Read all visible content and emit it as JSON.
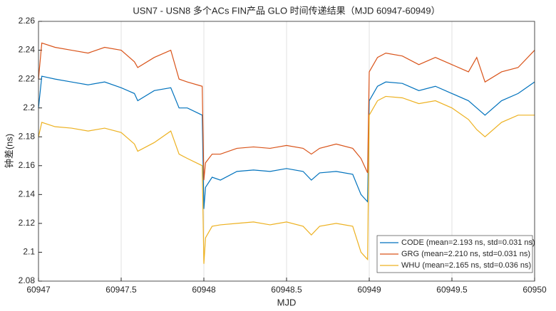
{
  "chart_data": {
    "type": "line",
    "title": "USN7 - USN8 多个ACs FIN产品 GLO 时间传递结果（MJD 60947-60949）",
    "x_label": "MJD",
    "y_label": "钟差(ns)",
    "x": [
      60947,
      60947.02,
      60947.1,
      60947.2,
      60947.3,
      60947.4,
      60947.5,
      60947.58,
      60947.6,
      60947.7,
      60947.8,
      60947.85,
      60947.9,
      60947.99,
      60948.0,
      60948.01,
      60948.05,
      60948.1,
      60948.2,
      60948.3,
      60948.4,
      60948.5,
      60948.6,
      60948.65,
      60948.7,
      60948.8,
      60948.9,
      60948.95,
      60948.99,
      60949.0,
      60949.05,
      60949.1,
      60949.2,
      60949.3,
      60949.4,
      60949.5,
      60949.6,
      60949.65,
      60949.7,
      60949.8,
      60949.9,
      60950
    ],
    "series": [
      {
        "name": "CODE (mean=2.193 ns, std=0.031 ns)",
        "color": "#0072BD",
        "values": [
          2.2,
          2.222,
          2.22,
          2.218,
          2.216,
          2.218,
          2.214,
          2.21,
          2.205,
          2.212,
          2.214,
          2.2,
          2.2,
          2.195,
          2.13,
          2.145,
          2.152,
          2.15,
          2.156,
          2.157,
          2.156,
          2.158,
          2.156,
          2.15,
          2.155,
          2.156,
          2.154,
          2.14,
          2.135,
          2.205,
          2.215,
          2.218,
          2.217,
          2.212,
          2.215,
          2.21,
          2.205,
          2.2,
          2.195,
          2.205,
          2.21,
          2.218
        ]
      },
      {
        "name": "GRG (mean=2.210 ns, std=0.031 ns)",
        "color": "#D95319",
        "values": [
          2.22,
          2.245,
          2.242,
          2.24,
          2.238,
          2.242,
          2.24,
          2.232,
          2.228,
          2.235,
          2.24,
          2.22,
          2.218,
          2.215,
          2.15,
          2.162,
          2.168,
          2.168,
          2.172,
          2.173,
          2.172,
          2.174,
          2.172,
          2.168,
          2.172,
          2.175,
          2.172,
          2.165,
          2.155,
          2.225,
          2.235,
          2.238,
          2.236,
          2.23,
          2.235,
          2.23,
          2.225,
          2.235,
          2.218,
          2.225,
          2.228,
          2.24
        ]
      },
      {
        "name": "WHU (mean=2.165 ns, std=0.036 ns)",
        "color": "#EDB120",
        "values": [
          2.18,
          2.19,
          2.187,
          2.186,
          2.184,
          2.186,
          2.183,
          2.175,
          2.17,
          2.176,
          2.184,
          2.168,
          2.165,
          2.16,
          2.092,
          2.11,
          2.118,
          2.119,
          2.12,
          2.121,
          2.119,
          2.121,
          2.118,
          2.112,
          2.118,
          2.12,
          2.118,
          2.1,
          2.095,
          2.195,
          2.205,
          2.208,
          2.207,
          2.203,
          2.205,
          2.2,
          2.192,
          2.185,
          2.18,
          2.19,
          2.195,
          2.195
        ]
      }
    ],
    "xlim": [
      60947,
      60950
    ],
    "xticks": [
      60947,
      60947.5,
      60948,
      60948.5,
      60949,
      60949.5,
      60950
    ],
    "ylim": [
      2.08,
      2.26
    ],
    "yticks": [
      2.08,
      2.1,
      2.12,
      2.14,
      2.16,
      2.18,
      2.2,
      2.22,
      2.24,
      2.26
    ],
    "grid": "x",
    "legend": "lower right"
  }
}
